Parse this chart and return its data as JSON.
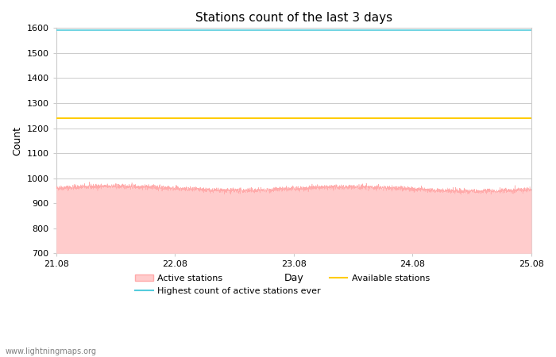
{
  "title": "Stations count of the last 3 days",
  "xlabel": "Day",
  "ylabel": "Count",
  "ylim": [
    700,
    1600
  ],
  "yticks": [
    700,
    800,
    900,
    1000,
    1100,
    1200,
    1300,
    1400,
    1500,
    1600
  ],
  "xlim_days": [
    0,
    4
  ],
  "xtick_positions": [
    0,
    1,
    2,
    3,
    4
  ],
  "xtick_labels": [
    "21.08",
    "22.08",
    "23.08",
    "24.08",
    "25.08"
  ],
  "highest_ever": 1590,
  "available_stations": 1240,
  "active_mean": 970,
  "active_noise": 5,
  "fill_color": "#FFCCCC",
  "fill_edge_color": "#FFAAAA",
  "highest_color": "#55CCDD",
  "available_color": "#FFCC00",
  "background_color": "#ffffff",
  "grid_color": "#cccccc",
  "watermark": "www.lightningmaps.org",
  "legend_labels": [
    "Active stations",
    "Highest count of active stations ever",
    "Available stations"
  ],
  "title_fontsize": 11,
  "axis_label_fontsize": 9,
  "tick_fontsize": 8,
  "legend_fontsize": 8
}
